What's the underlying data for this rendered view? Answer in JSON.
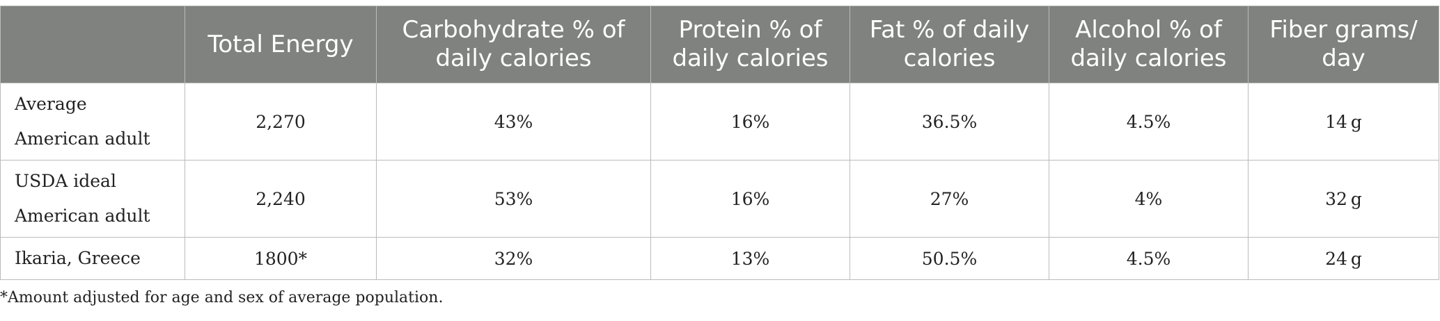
{
  "table": {
    "headers": [
      "",
      "Total Energy",
      "Carbohydrate % of daily calories",
      "Protein % of daily calories",
      "Fat % of daily calories",
      "Alcohol % of daily calories",
      "Fiber grams/ day"
    ],
    "rows": [
      {
        "label": "Average American adult",
        "cells": [
          "2,270",
          "43%",
          "16%",
          "36.5%",
          "4.5%",
          "14 g"
        ]
      },
      {
        "label": "USDA ideal American adult",
        "cells": [
          "2,240",
          "53%",
          "16%",
          "27%",
          "4%",
          "32 g"
        ]
      },
      {
        "label": "Ikaria, Greece",
        "cells": [
          "1800*",
          "32%",
          "13%",
          "50.5%",
          "4.5%",
          "24 g"
        ]
      }
    ]
  },
  "footnote": "*Amount adjusted for age and sex of average population.",
  "colors": {
    "header_background": "#7f827f",
    "header_text": "#ffffff",
    "grid_lines": "#b9bcb9",
    "body_text": "#222222"
  }
}
